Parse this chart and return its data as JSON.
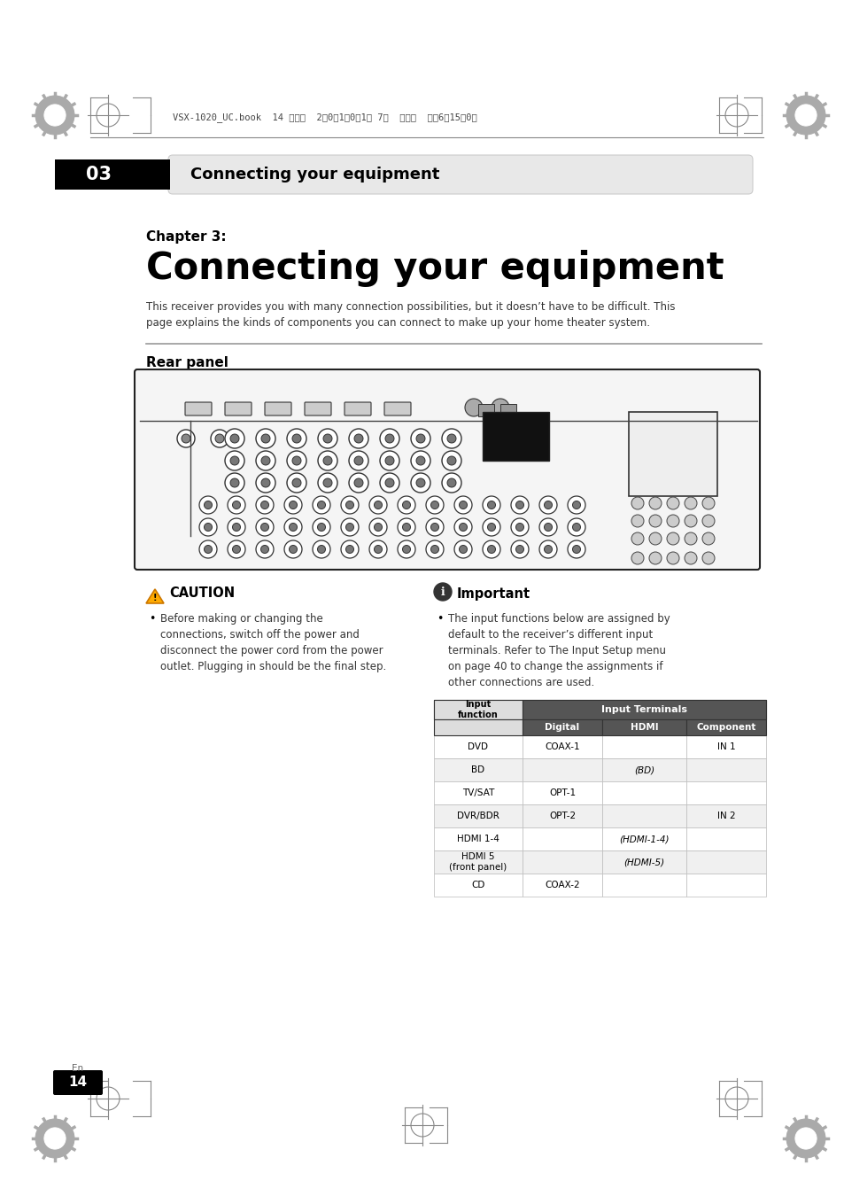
{
  "bg_color": "#ffffff",
  "page_header_num": "03",
  "page_header_text": "Connecting your equipment",
  "chapter_label": "Chapter 3:",
  "chapter_title": "Connecting your equipment",
  "body_text": "This receiver provides you with many connection possibilities, but it doesn’t have to be difficult. This\npage explains the kinds of components you can connect to make up your home theater system.",
  "section_title": "Rear panel",
  "caution_title": "CAUTION",
  "caution_text": "Before making or changing the\nconnections, switch off the power and\ndisconnect the power cord from the power\noutlet. Plugging in should be the final step.",
  "important_title": "Important",
  "important_text": "The input functions below are assigned by\ndefault to the receiver’s different input\nterminals. Refer to The Input Setup menu\non page 40 to change the assignments if\nother connections are used.",
  "table_header_col1": "Input\nfunction",
  "table_header_col2": "Input Terminals",
  "table_subheader": [
    "Digital",
    "HDMI",
    "Component"
  ],
  "table_rows": [
    [
      "DVD",
      "COAX-1",
      "",
      "IN 1"
    ],
    [
      "BD",
      "",
      "(BD)",
      ""
    ],
    [
      "TV/SAT",
      "OPT-1",
      "",
      ""
    ],
    [
      "DVR/BDR",
      "OPT-2",
      "",
      "IN 2"
    ],
    [
      "HDMI 1-4",
      "",
      "(HDMI-1-4)",
      ""
    ],
    [
      "HDMI 5\n(front panel)",
      "",
      "(HDMI-5)",
      ""
    ],
    [
      "CD",
      "COAX-2",
      "",
      ""
    ]
  ],
  "page_num": "14",
  "page_lang": "En",
  "header_file_text": "VSX-1020_UC.book  14 ページ  2　0　1　0年1月 7日  木曜日  午後6時15分0分"
}
